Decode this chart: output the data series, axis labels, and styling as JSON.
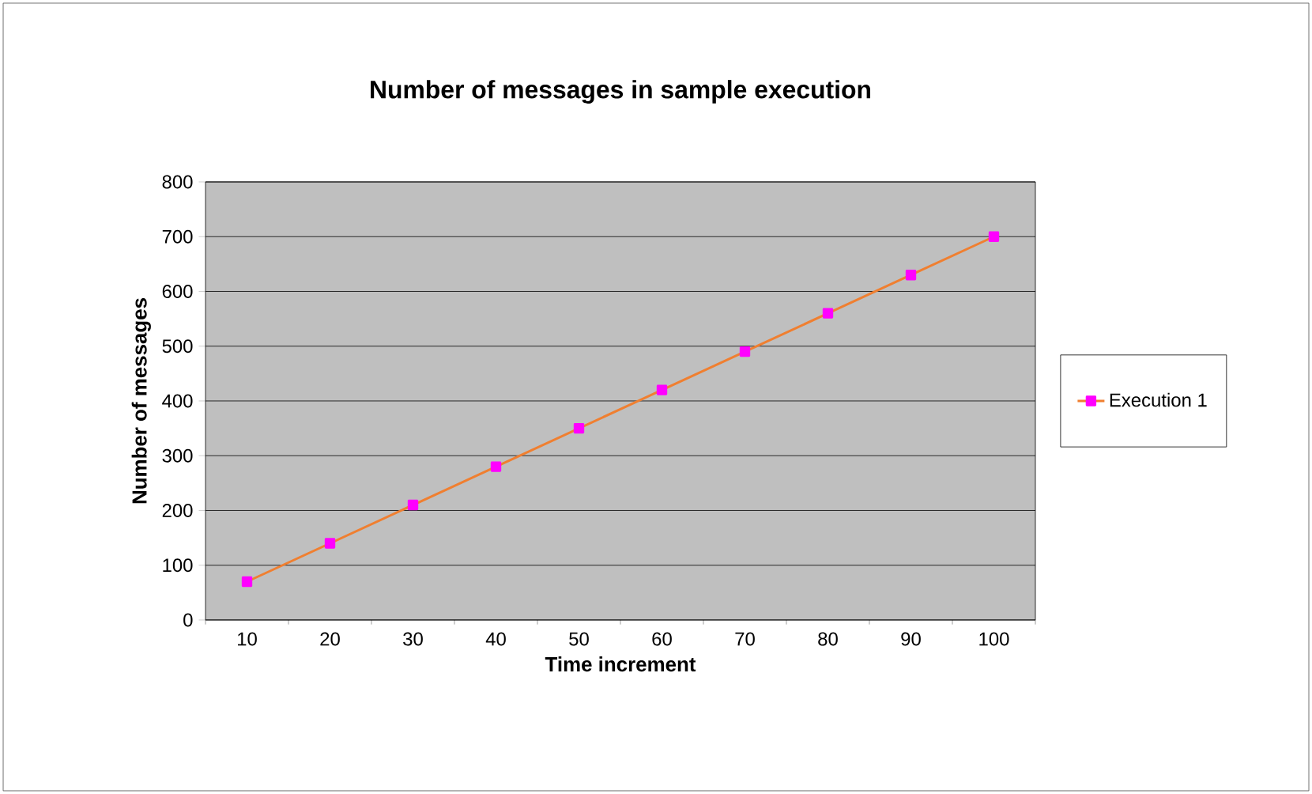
{
  "chart_data": {
    "type": "line",
    "title": "Number of messages in sample execution",
    "xlabel": "Time increment",
    "ylabel": "Number of messages",
    "categories": [
      "10",
      "20",
      "30",
      "40",
      "50",
      "60",
      "70",
      "80",
      "90",
      "100"
    ],
    "series": [
      {
        "name": "Execution 1",
        "color": "#f07f30",
        "colors": [
          "#ff00ff",
          "#ff00ff",
          "#ff00ff",
          "#ff00ff",
          "#ff00ff",
          "#ff00ff",
          "#ff00ff",
          "#ff00ff",
          "#ff00ff",
          "#ff00ff"
        ],
        "values": [
          70,
          140,
          210,
          280,
          350,
          420,
          490,
          560,
          630,
          700
        ]
      }
    ],
    "ylim": [
      0,
      800
    ],
    "yticks": [
      0,
      100,
      200,
      300,
      400,
      500,
      600,
      700,
      800
    ],
    "grid": "y",
    "legend": "right",
    "marker": "square"
  }
}
